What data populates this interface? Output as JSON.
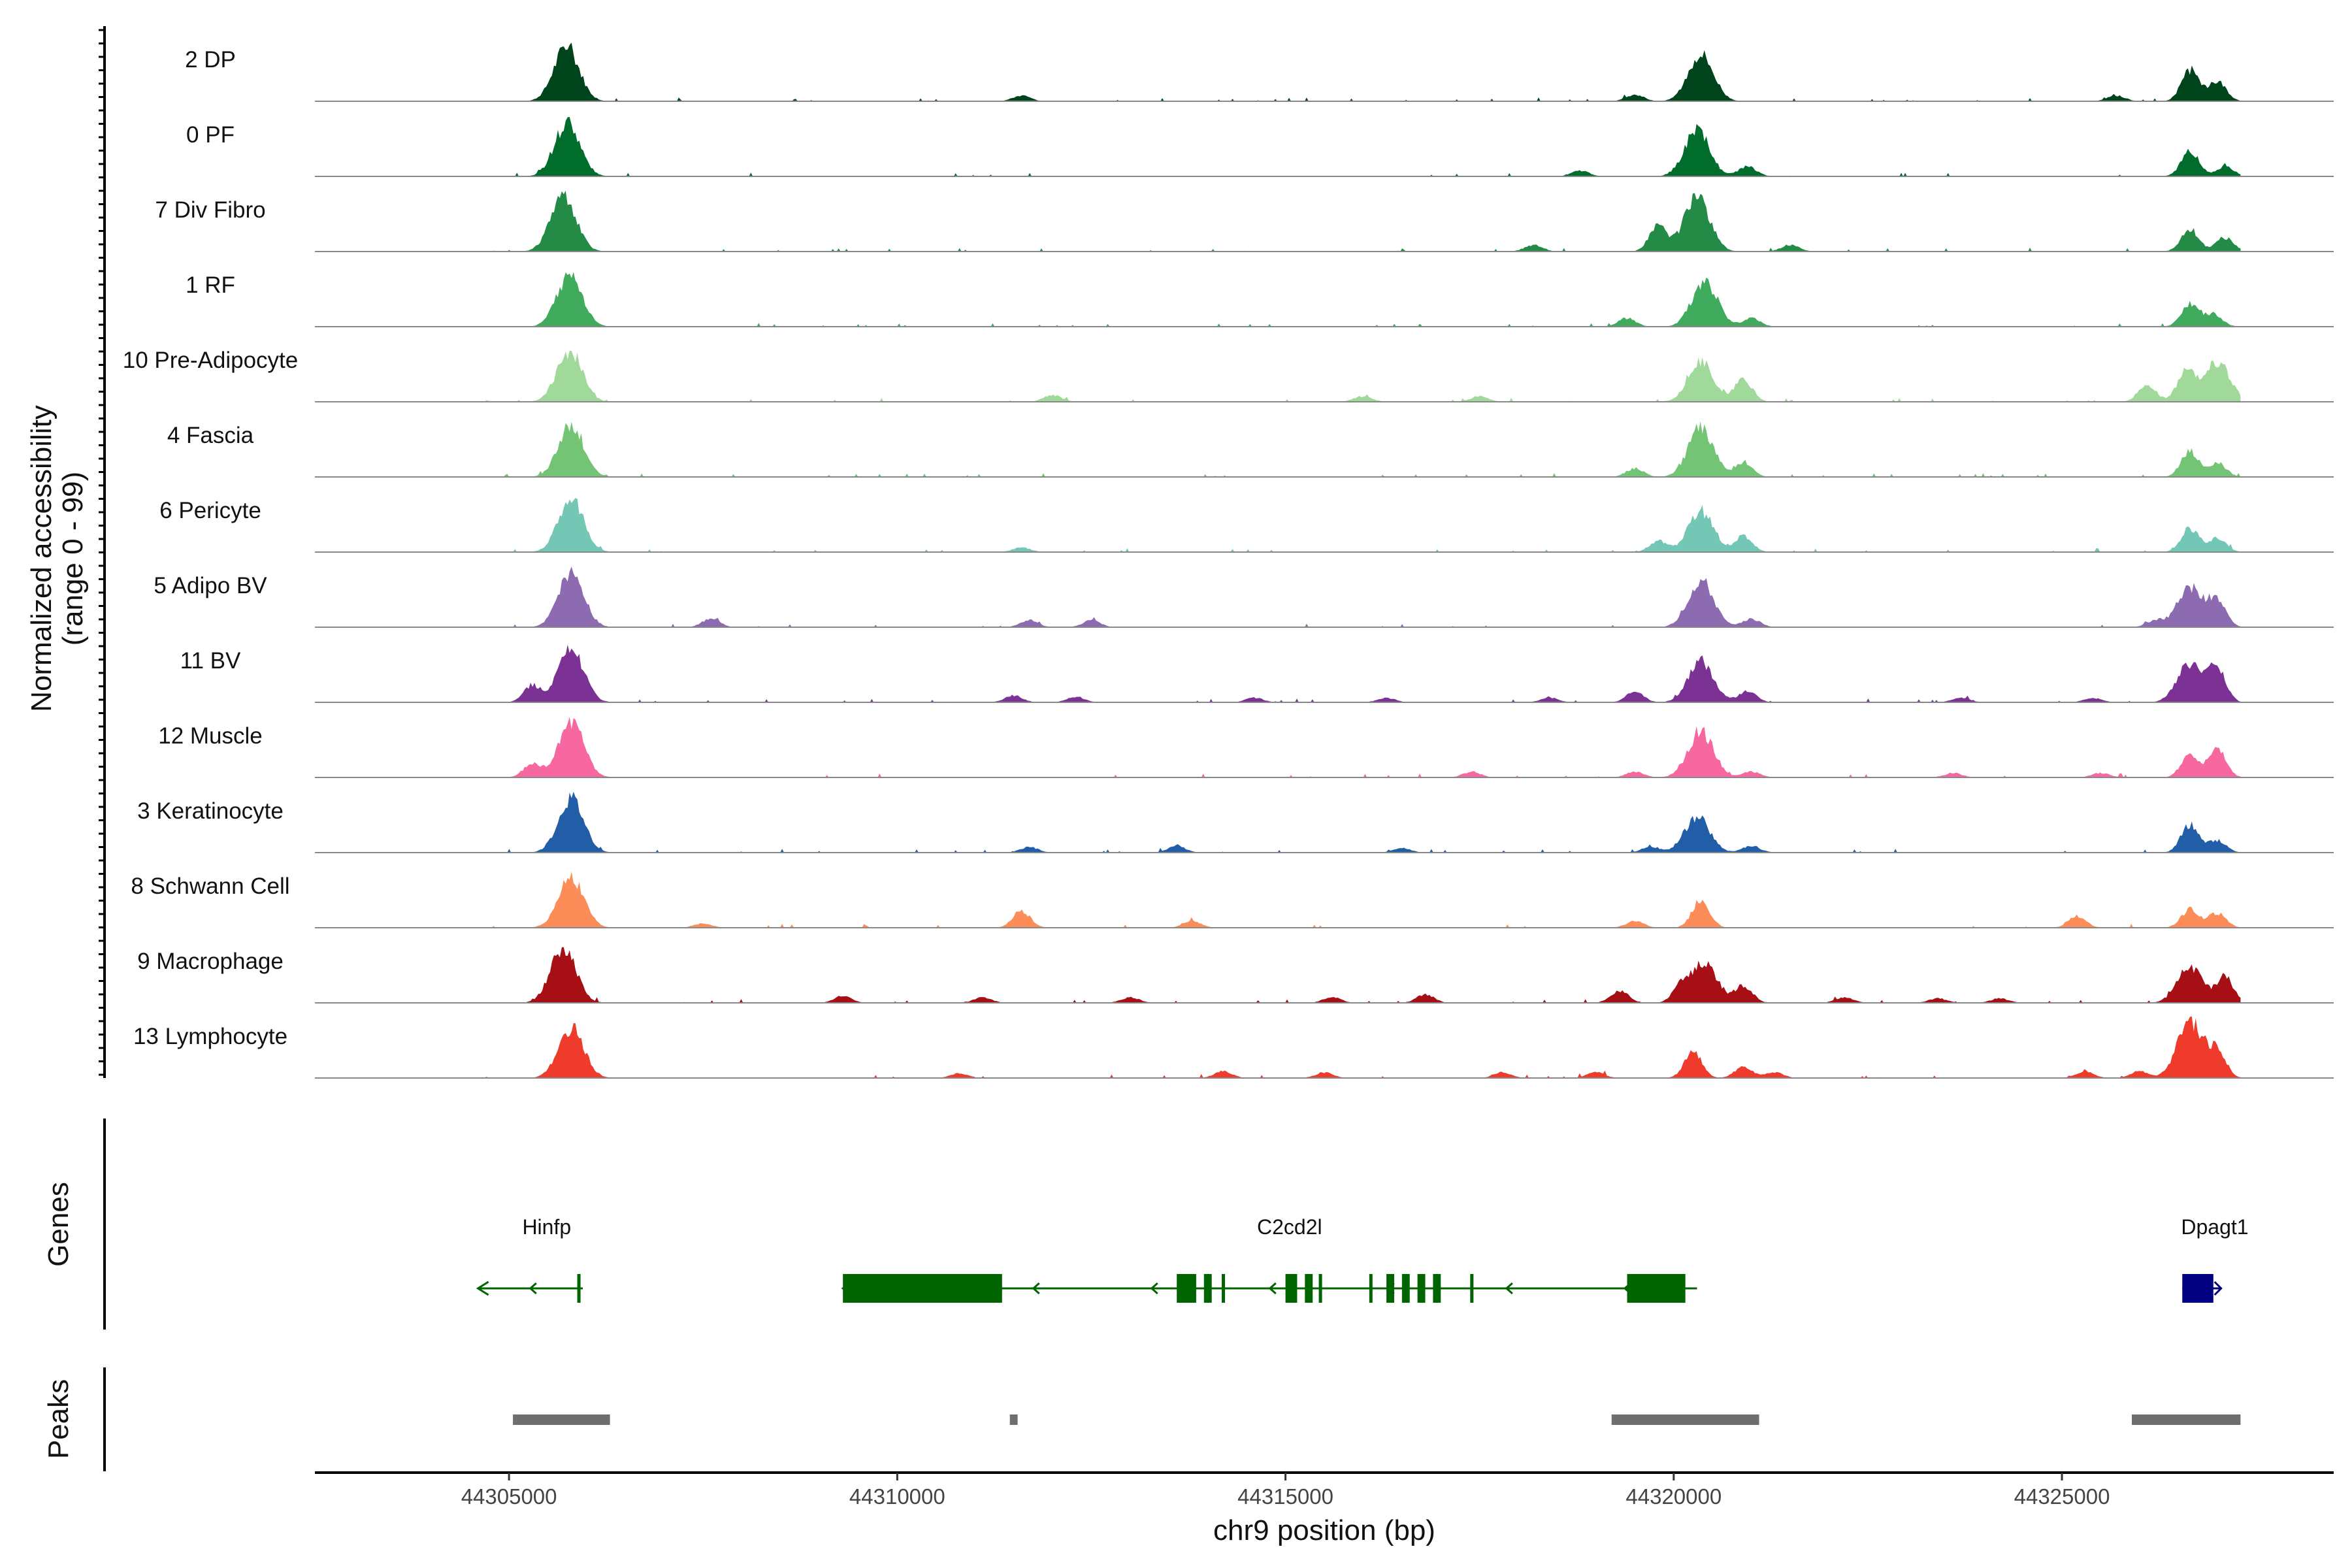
{
  "chart_data": {
    "type": "area",
    "chromosome": "chr9",
    "xlabel": "chr9 position (bp)",
    "ylabel": "Normalized accessibility",
    "ylabel_range": "(range 0 - 99)",
    "xlim": [
      44302500,
      44328500
    ],
    "ylim": [
      0,
      99
    ],
    "x_ticks": [
      {
        "value": 44305000,
        "label": "44305000"
      },
      {
        "value": 44310000,
        "label": "44310000"
      },
      {
        "value": 44315000,
        "label": "44315000"
      },
      {
        "value": 44320000,
        "label": "44320000"
      },
      {
        "value": 44325000,
        "label": "44325000"
      }
    ],
    "tracks": [
      {
        "name": "2 DP",
        "color": "#00441b",
        "peaks": [
          [
            44305740,
            95
          ],
          [
            44320350,
            82
          ],
          [
            44326650,
            55
          ],
          [
            44327000,
            35
          ],
          [
            44311600,
            10
          ],
          [
            44319500,
            12
          ],
          [
            44325700,
            10
          ]
        ]
      },
      {
        "name": "0 PF",
        "color": "#006d2c",
        "peaks": [
          [
            44305750,
            95
          ],
          [
            44320300,
            80
          ],
          [
            44326650,
            45
          ],
          [
            44327100,
            18
          ],
          [
            44320950,
            18
          ],
          [
            44318800,
            10
          ]
        ]
      },
      {
        "name": "7 Div Fibro",
        "color": "#238b45",
        "peaks": [
          [
            44305700,
            99
          ],
          [
            44320300,
            97
          ],
          [
            44319800,
            45
          ],
          [
            44326650,
            40
          ],
          [
            44327100,
            25
          ],
          [
            44318200,
            12
          ],
          [
            44321500,
            12
          ]
        ]
      },
      {
        "name": "1 RF",
        "color": "#41ab5d",
        "peaks": [
          [
            44305780,
            90
          ],
          [
            44320400,
            80
          ],
          [
            44326650,
            40
          ],
          [
            44326950,
            22
          ],
          [
            44319400,
            15
          ],
          [
            44321000,
            15
          ]
        ]
      },
      {
        "name": "10 Pre-Adipocyte",
        "color": "#a1d99b",
        "peaks": [
          [
            44305780,
            88
          ],
          [
            44320350,
            70
          ],
          [
            44327000,
            70
          ],
          [
            44326600,
            55
          ],
          [
            44320900,
            40
          ],
          [
            44326100,
            30
          ],
          [
            44304500,
            15
          ],
          [
            44312000,
            12
          ],
          [
            44316000,
            10
          ],
          [
            44317500,
            10
          ]
        ]
      },
      {
        "name": "4 Fascia",
        "color": "#74c476",
        "peaks": [
          [
            44305800,
            92
          ],
          [
            44320350,
            85
          ],
          [
            44326650,
            45
          ],
          [
            44320900,
            25
          ],
          [
            44327000,
            25
          ],
          [
            44319500,
            15
          ]
        ]
      },
      {
        "name": "6 Pericyte",
        "color": "#74c7b5",
        "peaks": [
          [
            44305800,
            92
          ],
          [
            44320350,
            72
          ],
          [
            44326650,
            42
          ],
          [
            44320900,
            28
          ],
          [
            44327000,
            25
          ],
          [
            44319800,
            20
          ],
          [
            44311600,
            8
          ]
        ]
      },
      {
        "name": "5 Adipo BV",
        "color": "#8c6bb1",
        "peaks": [
          [
            44305800,
            95
          ],
          [
            44320350,
            85
          ],
          [
            44326650,
            70
          ],
          [
            44327000,
            45
          ],
          [
            44307600,
            15
          ],
          [
            44311700,
            12
          ],
          [
            44312500,
            12
          ],
          [
            44304300,
            10
          ],
          [
            44321000,
            15
          ],
          [
            44326200,
            12
          ]
        ]
      },
      {
        "name": "11 BV",
        "color": "#7b3294",
        "peaks": [
          [
            44305800,
            95
          ],
          [
            44320350,
            72
          ],
          [
            44326650,
            70
          ],
          [
            44327000,
            55
          ],
          [
            44305300,
            30
          ],
          [
            44319500,
            18
          ],
          [
            44320950,
            20
          ],
          [
            44311500,
            12
          ],
          [
            44304200,
            12
          ],
          [
            44312300,
            10
          ],
          [
            44314600,
            8
          ],
          [
            44316300,
            8
          ],
          [
            44318400,
            8
          ],
          [
            44323700,
            8
          ],
          [
            44325400,
            8
          ]
        ]
      },
      {
        "name": "12 Muscle",
        "color": "#f768a1",
        "peaks": [
          [
            44305800,
            99
          ],
          [
            44320350,
            82
          ],
          [
            44326650,
            40
          ],
          [
            44327000,
            50
          ],
          [
            44305300,
            25
          ],
          [
            44317400,
            10
          ],
          [
            44319500,
            10
          ],
          [
            44321000,
            10
          ],
          [
            44323600,
            8
          ],
          [
            44325500,
            8
          ]
        ]
      },
      {
        "name": "3 Keratinocyte",
        "color": "#225ea8",
        "peaks": [
          [
            44305800,
            95
          ],
          [
            44320300,
            62
          ],
          [
            44326650,
            50
          ],
          [
            44327000,
            22
          ],
          [
            44313600,
            12
          ],
          [
            44311700,
            10
          ],
          [
            44316500,
            8
          ],
          [
            44319700,
            10
          ],
          [
            44321000,
            12
          ]
        ]
      },
      {
        "name": "8 Schwann Cell",
        "color": "#fc8d59",
        "peaks": [
          [
            44305800,
            90
          ],
          [
            44320350,
            48
          ],
          [
            44311600,
            30
          ],
          [
            44326650,
            32
          ],
          [
            44327000,
            26
          ],
          [
            44325200,
            20
          ],
          [
            44319500,
            12
          ],
          [
            44313800,
            12
          ],
          [
            44307500,
            8
          ]
        ]
      },
      {
        "name": "9 Macrophage",
        "color": "#a50f15",
        "peaks": [
          [
            44305700,
            99
          ],
          [
            44320400,
            68
          ],
          [
            44326650,
            62
          ],
          [
            44327100,
            45
          ],
          [
            44319300,
            22
          ],
          [
            44320100,
            28
          ],
          [
            44320900,
            30
          ],
          [
            44316800,
            15
          ],
          [
            44309300,
            12
          ],
          [
            44311100,
            10
          ],
          [
            44313000,
            10
          ],
          [
            44315600,
            10
          ],
          [
            44322200,
            10
          ],
          [
            44323400,
            8
          ],
          [
            44324200,
            8
          ]
        ]
      },
      {
        "name": "13 Lymphocyte",
        "color": "#ef3b2c",
        "peaks": [
          [
            44305800,
            88
          ],
          [
            44326650,
            99
          ],
          [
            44320250,
            45
          ],
          [
            44327000,
            45
          ],
          [
            44320900,
            20
          ],
          [
            44325300,
            12
          ],
          [
            44326000,
            12
          ],
          [
            44314200,
            12
          ],
          [
            44315500,
            10
          ],
          [
            44317800,
            10
          ],
          [
            44319000,
            10
          ],
          [
            44321300,
            10
          ],
          [
            44310800,
            8
          ],
          [
            44304500,
            10
          ]
        ]
      }
    ],
    "genes_track_label": "Genes",
    "genes": [
      {
        "name": "Hinfp",
        "strand": "-",
        "start": 44304600,
        "end": 44305950,
        "color": "#006400",
        "exons": [
          [
            44305900,
            44305950
          ]
        ]
      },
      {
        "name": "C2cd2l",
        "strand": "-",
        "start": 44309300,
        "end": 44320300,
        "color": "#006400",
        "exons": [
          [
            44309300,
            44311350
          ],
          [
            44313600,
            44313850
          ],
          [
            44313950,
            44314050
          ],
          [
            44314200,
            44314250
          ],
          [
            44315000,
            44315150
          ],
          [
            44315250,
            44315350
          ],
          [
            44315450,
            44315500
          ],
          [
            44316100,
            44316150
          ],
          [
            44316300,
            44316400
          ],
          [
            44316500,
            44316600
          ],
          [
            44316700,
            44316800
          ],
          [
            44316900,
            44317000
          ],
          [
            44317400,
            44317450
          ],
          [
            44319400,
            44320150
          ]
        ]
      },
      {
        "name": "Dpagt1",
        "strand": "+",
        "start": 44326550,
        "end": 44327050,
        "color": "#000080",
        "exons": [
          [
            44326550,
            44326950
          ]
        ]
      }
    ],
    "peaks_track_label": "Peaks",
    "peak_regions": [
      [
        44305050,
        44306300
      ],
      [
        44311450,
        44311550
      ],
      [
        44319200,
        44321100
      ],
      [
        44325900,
        44327300
      ]
    ],
    "peak_region_color": "#6e6e6e"
  }
}
